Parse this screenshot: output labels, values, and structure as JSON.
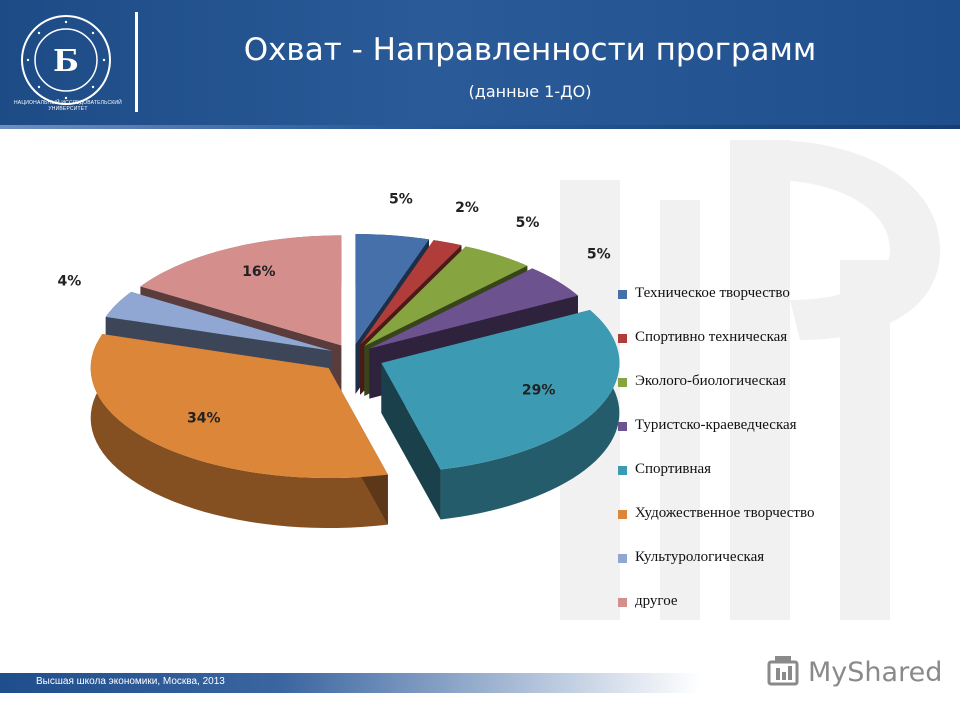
{
  "header": {
    "title": "Охват  - Направленности программ",
    "subtitle": "(данные 1-ДО)",
    "logo_caption": "НАЦИОНАЛЬНЫЙ ИССЛЕДОВАТЕЛЬСКИЙ УНИВЕРСИТЕТ"
  },
  "footer": {
    "text": "Высшая школа экономики, Москва, 2013",
    "brand": "MyShared"
  },
  "colors": {
    "header": "#1f4e8c",
    "slices": [
      "#4670aa",
      "#b03d3a",
      "#86a43f",
      "#6d5290",
      "#3d9ab3",
      "#dc8639",
      "#8fa7d2",
      "#d48f8d"
    ]
  },
  "chart_data": {
    "type": "pie",
    "title": "",
    "categories": [
      "Техническое творчество",
      "Спортивно техническая",
      "Эколого-биологическая",
      "Туристско-краеведческая",
      "Спортивная",
      "Художественное творчество",
      "Культурологическая",
      "другое"
    ],
    "values": [
      5,
      2,
      5,
      5,
      29,
      34,
      4,
      16
    ],
    "labels": [
      "5%",
      "2%",
      "5%",
      "5%",
      "29%",
      "34%",
      "4%",
      "16%"
    ],
    "legend_position": "right",
    "style": "3d exploded"
  }
}
